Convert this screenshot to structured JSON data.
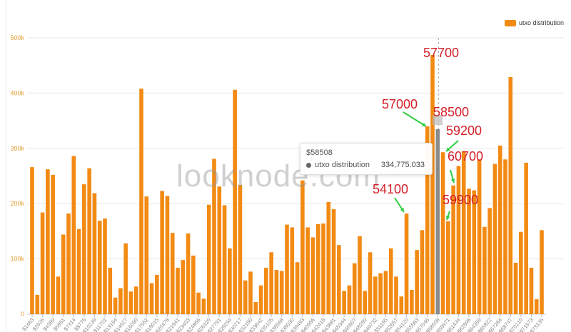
{
  "chart_data": {
    "type": "bar",
    "legend": {
      "label": "utxo distribution",
      "position": "top-right"
    },
    "color": "#f28a14",
    "highlight_color": "#8a8a8a",
    "grid": true,
    "ylim": [
      0,
      500000
    ],
    "y_ticks": [
      "0",
      "100k",
      "200k",
      "300k",
      "400k",
      "500k"
    ],
    "x_tick_labels": [
      "$1463",
      "$2926",
      "$4389",
      "$5851",
      "$7314",
      "$8776",
      "$10239",
      "$11702",
      "$13164",
      "$14627",
      "$16090",
      "$17552",
      "$19015",
      "$20478",
      "$21941",
      "$23403",
      "$24866",
      "$26329",
      "$27791",
      "$29254",
      "$30717",
      "$32180",
      "$33642",
      "$35105",
      "$36568",
      "$38030",
      "$39493",
      "$40956",
      "$42418",
      "$43881",
      "$45344",
      "$46807",
      "$48269",
      "$49732",
      "$51195",
      "$52657",
      "$54120",
      "$55583",
      "$57046",
      "$58508",
      "$59971",
      "$61434",
      "$62896",
      "$64359",
      "$65822",
      "$67284",
      "$68747",
      "$70210",
      "$71673",
      "$73135"
    ],
    "values": [
      266000,
      35000,
      184000,
      262000,
      252000,
      68000,
      144000,
      182000,
      286000,
      154000,
      235000,
      264000,
      219000,
      169000,
      173000,
      84000,
      30000,
      47000,
      128000,
      41000,
      50000,
      408000,
      213000,
      56000,
      71000,
      223000,
      214000,
      147000,
      84000,
      98000,
      146000,
      106000,
      39000,
      28000,
      198000,
      281000,
      231000,
      197000,
      119000,
      406000,
      234000,
      61000,
      77000,
      22000,
      52000,
      84000,
      112000,
      80000,
      78000,
      162000,
      157000,
      94000,
      242000,
      157000,
      139000,
      163000,
      164000,
      203000,
      190000,
      125000,
      42000,
      52000,
      92000,
      141000,
      42000,
      112000,
      68000,
      74000,
      78000,
      119000,
      68000,
      32000,
      182000,
      44000,
      116000,
      152000,
      340000,
      469000,
      334775,
      293000,
      168000,
      233000,
      268000,
      295000,
      227000,
      224000,
      280000,
      158000,
      192000,
      272000,
      305000,
      280000,
      429000,
      93000,
      149000,
      274000,
      84000,
      27000,
      152000
    ],
    "highlight_index": 78
  },
  "tooltip": {
    "title": "$58508",
    "series": "utxo distribution",
    "value": "334,775.033"
  },
  "watermark": "looknode.com",
  "annotations": [
    "57700",
    "57000",
    "58500",
    "59200",
    "60700",
    "54100",
    "59900"
  ]
}
